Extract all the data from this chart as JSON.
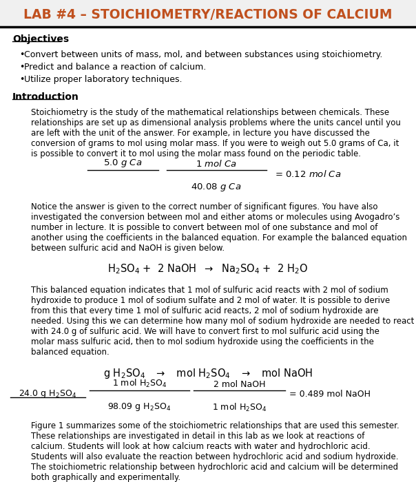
{
  "title": "LAB #4 – STOICHIOMETRY/REACTIONS OF CALCIUM",
  "title_color": "#C0501E",
  "bg_color": "#FFFFFF",
  "objectives_header": "Objectives",
  "objectives": [
    "Convert between units of mass, mol, and between substances using stoichiometry.",
    "Predict and balance a reaction of calcium.",
    "Utilize proper laboratory techniques."
  ],
  "intro_header": "Introduction",
  "intro_p1": "Stoichiometry is the study of the mathematical relationships between chemicals.  These relationships are set up as dimensional analysis problems where the units cancel until you are left with the unit of the answer.  For example, in lecture you have discussed the conversion of grams to mol using molar mass.  If you were to weigh out 5.0 grams of Ca, it is possible to convert it to mol using the molar mass found on the periodic table.",
  "intro_p2": "Notice the answer is given to the correct number of significant figures.  You have also investigated the conversion between mol and either atoms or molecules using Avogadro’s number in lecture.  It is possible to convert between mol of one substance and mol of another using the coefficients in the balanced equation.  For example the balanced equation between sulfuric acid and NaOH is given below.",
  "intro_p3": "This balanced equation indicates that 1 mol of sulfuric acid reacts with 2 mol of sodium hydroxide to produce 1 mol of sodium sulfate and 2 mol of water.  It is possible to derive from this that every time 1 mol of sulfuric acid reacts, 2 mol of sodium hydroxide are needed.  Using this we can determine how many mol of sodium hydroxide are needed to react with 24.0 g of sulfuric acid.  We will have to convert first to mol sulfuric acid using the molar mass sulfuric acid, then to mol sodium hydroxide using the coefficients in the balanced equation.",
  "intro_p4": "Figure 1 summarizes some of the stoichiometric relationships that are used this semester.  These relationships are investigated in detail in this lab as we look at reactions of calcium.  Students will look at how calcium reacts with water and hydrochloric acid.  Students will also evaluate the reaction between hydrochloric acid and sodium hydroxide.  The stoichiometric relationship between hydrochloric acid and calcium will be determined both graphically and experimentally."
}
